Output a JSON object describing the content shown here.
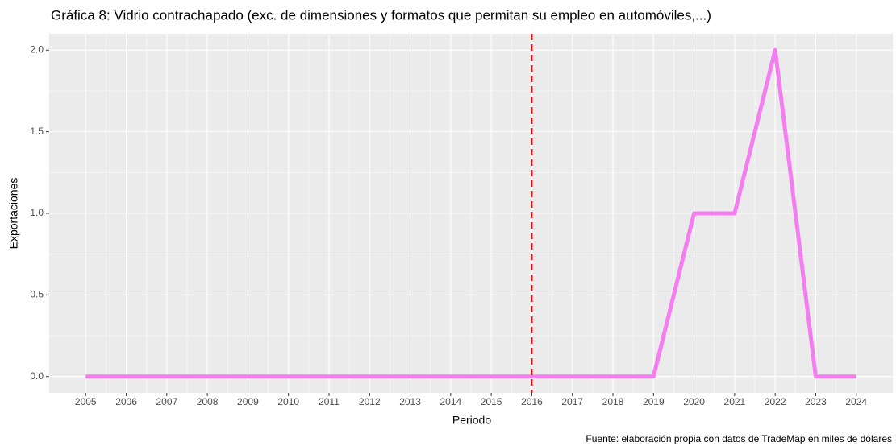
{
  "chart_data": {
    "type": "line",
    "title": "Gráfica 8: Vidrio contrachapado (exc. de dimensiones y formatos que permitan su empleo en automóviles,...)",
    "x_label": "Periodo",
    "y_label": "Exportaciones",
    "caption": "Fuente: elaboración propia con datos de TradeMap en miles de dólares",
    "x": [
      2005,
      2006,
      2007,
      2008,
      2009,
      2010,
      2011,
      2012,
      2013,
      2014,
      2015,
      2016,
      2017,
      2018,
      2019,
      2020,
      2021,
      2022,
      2023,
      2024
    ],
    "series": [
      {
        "color": "#f47ef0",
        "values": [
          0,
          0,
          0,
          0,
          0,
          0,
          0,
          0,
          0,
          0,
          0,
          0,
          0,
          0,
          0,
          1,
          1,
          2,
          0,
          0
        ]
      }
    ],
    "vline": {
      "x": 2016,
      "color": "#ff0000"
    },
    "xlim": [
      2004.1,
      2024.9
    ],
    "xticks": [
      2005,
      2006,
      2007,
      2008,
      2009,
      2010,
      2011,
      2012,
      2013,
      2014,
      2015,
      2016,
      2017,
      2018,
      2019,
      2020,
      2021,
      2022,
      2023,
      2024
    ],
    "ylim": [
      -0.1,
      2.1
    ],
    "yticks": [
      {
        "value": 0,
        "label": "0.0"
      },
      {
        "value": 0.5,
        "label": "0.5"
      },
      {
        "value": 1,
        "label": "1.0"
      },
      {
        "value": 1.5,
        "label": "1.5"
      },
      {
        "value": 2,
        "label": "2.0"
      }
    ],
    "grid": true
  }
}
